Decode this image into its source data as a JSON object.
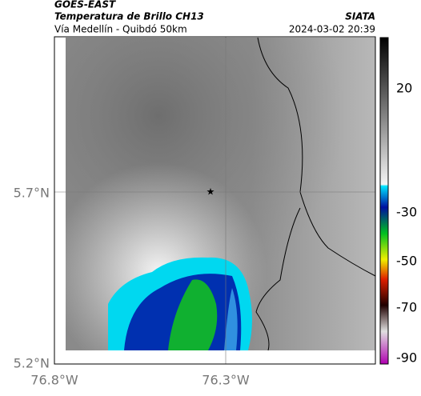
{
  "header": {
    "title": "GOES-EAST",
    "subtitle": "Temperatura de Brillo CH13",
    "location": "Vía Medellín - Quibdó 50km",
    "source": "SIATA",
    "datetime": "2024-03-02 20:39"
  },
  "map": {
    "y_ticks": [
      "5.7°N",
      "5.2°N"
    ],
    "x_ticks": [
      "76.8°W",
      "76.3°W"
    ]
  },
  "colorbar": {
    "ticks": [
      "20",
      "-30",
      "-50",
      "-70",
      "-90"
    ]
  }
}
